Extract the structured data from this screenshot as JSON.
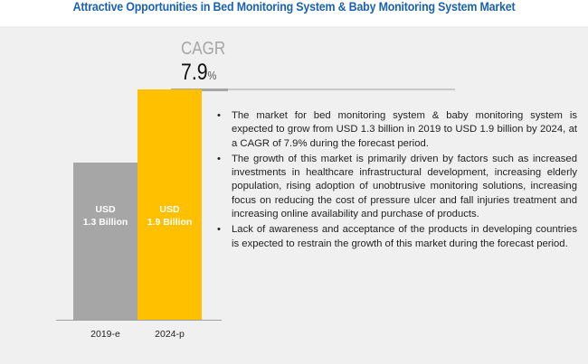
{
  "title": "Attractive Opportunities in Bed Monitoring System & Baby Monitoring System Market",
  "cagr": {
    "label": "CAGR",
    "value": "7.9",
    "unit": "%"
  },
  "chart_data": {
    "type": "bar",
    "categories": [
      "2019-e",
      "2024-p"
    ],
    "values": [
      1.3,
      1.9
    ],
    "data_labels": [
      {
        "line1": "USD",
        "line2": "1.3 Billion"
      },
      {
        "line1": "USD",
        "line2": "1.9 Billion"
      }
    ],
    "unit": "USD Billion",
    "colors": [
      "#a6a6a6",
      "#ffc000"
    ],
    "ylim": [
      0,
      2.0
    ],
    "grid": false
  },
  "bullets": [
    "The market for bed monitoring system & baby monitoring system is expected to grow from USD 1.3 billion in 2019 to USD 1.9 billion by 2024, at a CAGR of 7.9% during the forecast period.",
    "The growth of this market is primarily driven by factors such as increased investments in healthcare infrastructural development, increasing elderly population, rising adoption of unobtrusive monitoring solutions, increasing focus on reducing the cost of pressure ulcer and fall injuries treatment and increasing online availability and purchase of products.",
    "Lack of awareness and acceptance of the products in developing countries is expected to restrain the growth of this market during the forecast period."
  ]
}
